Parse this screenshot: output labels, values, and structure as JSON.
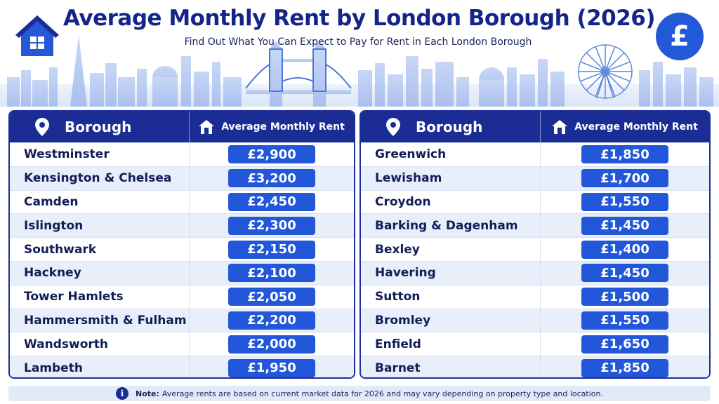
{
  "header": {
    "title": "Average Monthly Rent by London Borough (2026)",
    "subtitle": "Find Out What You Can Expect to Pay for Rent in Each London Borough",
    "logo_icon": "house-icon",
    "badge_icon": "pound-icon",
    "badge_symbol": "£"
  },
  "table": {
    "col_borough": "Borough",
    "col_rent": "Average Monthly Rent",
    "left": [
      {
        "borough": "Westminster",
        "rent": "£2,900"
      },
      {
        "borough": "Kensington & Chelsea",
        "rent": "£3,200"
      },
      {
        "borough": "Camden",
        "rent": "£2,450"
      },
      {
        "borough": "Islington",
        "rent": "£2,300"
      },
      {
        "borough": "Southwark",
        "rent": "£2,150"
      },
      {
        "borough": "Hackney",
        "rent": "£2,100"
      },
      {
        "borough": "Tower Hamlets",
        "rent": "£2,050"
      },
      {
        "borough": "Hammersmith & Fulham",
        "rent": "£2,200"
      },
      {
        "borough": "Wandsworth",
        "rent": "£2,000"
      },
      {
        "borough": "Lambeth",
        "rent": "£1,950"
      }
    ],
    "right": [
      {
        "borough": "Greenwich",
        "rent": "£1,850"
      },
      {
        "borough": "Lewisham",
        "rent": "£1,700"
      },
      {
        "borough": "Croydon",
        "rent": "£1,550"
      },
      {
        "borough": "Barking & Dagenham",
        "rent": "£1,450"
      },
      {
        "borough": "Bexley",
        "rent": "£1,400"
      },
      {
        "borough": "Havering",
        "rent": "£1,450"
      },
      {
        "borough": "Sutton",
        "rent": "£1,500"
      },
      {
        "borough": "Bromley",
        "rent": "£1,550"
      },
      {
        "borough": "Enfield",
        "rent": "£1,650"
      },
      {
        "borough": "Barnet",
        "rent": "£1,850"
      }
    ]
  },
  "note": {
    "label": "Note:",
    "text": "Average rents are based on current market data for 2026 and may vary depending on property type and location.",
    "icon": "info-icon",
    "icon_glyph": "i"
  },
  "colors": {
    "primary_navy": "#1b2d94",
    "accent_blue": "#2357d9",
    "row_alt": "#e8effb"
  }
}
